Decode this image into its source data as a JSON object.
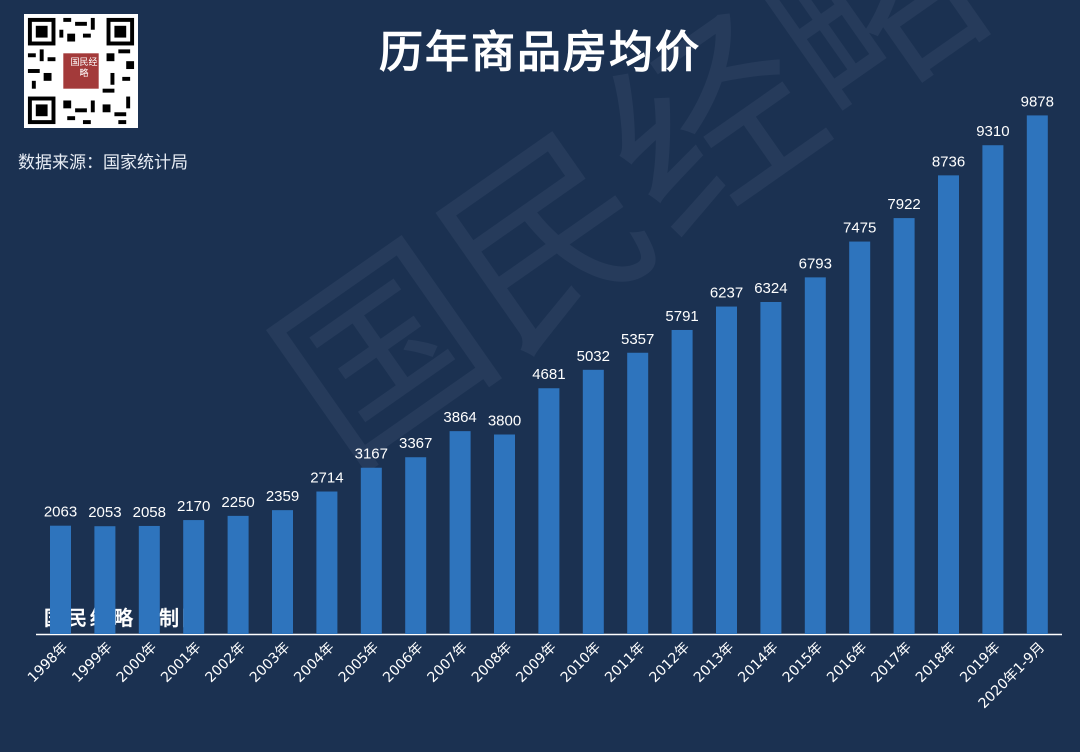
{
  "title": "历年商品房均价",
  "source": "数据来源：国家统计局",
  "credit": "国民经略｜制图",
  "watermark": "国民经略",
  "logo_text": "国民经略",
  "colors": {
    "background": "#1b3151",
    "bar": "#2e74bd",
    "text": "#ffffff",
    "axis": "#ffffff"
  },
  "chart_data": {
    "type": "bar",
    "title": "历年商品房均价",
    "categories": [
      "1998年",
      "1999年",
      "2000年",
      "2001年",
      "2002年",
      "2003年",
      "2004年",
      "2005年",
      "2006年",
      "2007年",
      "2008年",
      "2009年",
      "2010年",
      "2011年",
      "2012年",
      "2013年",
      "2014年",
      "2015年",
      "2016年",
      "2017年",
      "2018年",
      "2019年",
      "2020年1-9月"
    ],
    "values": [
      2063,
      2053,
      2058,
      2170,
      2250,
      2359,
      2714,
      3167,
      3367,
      3864,
      3800,
      4681,
      5032,
      5357,
      5791,
      6237,
      6324,
      6793,
      7475,
      7922,
      8736,
      9310,
      9878
    ],
    "ylim": [
      0,
      10000
    ],
    "grid": false,
    "legend": "none",
    "data_labels": true
  }
}
